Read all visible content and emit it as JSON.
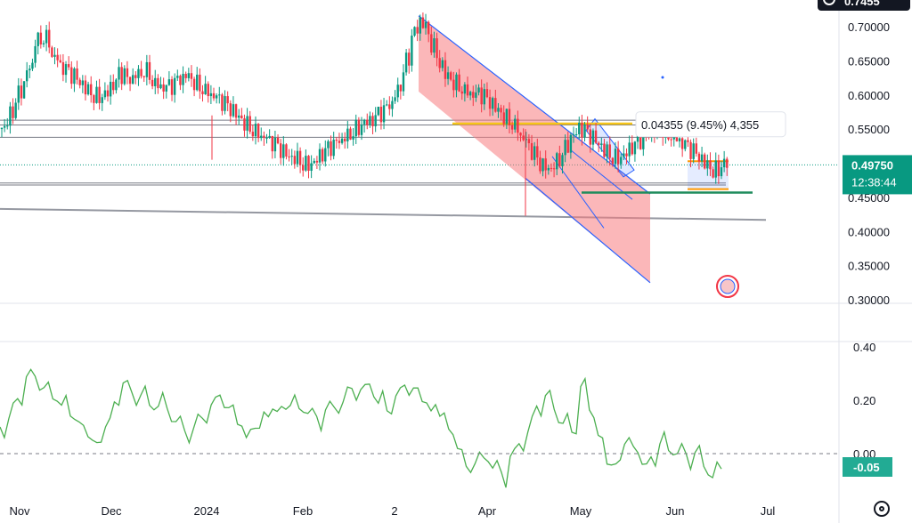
{
  "top_button": {
    "label": "0.7455"
  },
  "price_axis": {
    "ticks": [
      "0.70000",
      "0.65000",
      "0.60000",
      "0.55000",
      "0.50000",
      "0.45000",
      "0.40000",
      "0.35000",
      "0.30000"
    ]
  },
  "indicator_axis": {
    "ticks": [
      "0.40",
      "0.20",
      "0.00"
    ]
  },
  "time_axis": {
    "labels": [
      "Nov",
      "Dec",
      "2024",
      "Feb",
      "2",
      "Apr",
      "May",
      "Jun",
      "Jul"
    ]
  },
  "current_price": {
    "value": "0.49750",
    "countdown": "12:38:44",
    "color": "#089981"
  },
  "indicator_current": {
    "value": "-0.05",
    "color": "#22ab94"
  },
  "measure_label": "0.04355 (9.45%) 4,355",
  "colors": {
    "up": "#089981",
    "down": "#f23645",
    "indicator": "#4caf50",
    "channel": "#f77c80",
    "channel_line": "#2962ff",
    "support": "#1e8c5c",
    "resistance": "#f5c518",
    "orange_box": "#ff9800"
  },
  "chart_data": {
    "type": "candlestick",
    "x": [
      "Nov",
      "Dec",
      "2024",
      "Feb",
      "2",
      "Apr",
      "May",
      "Jun",
      "Jul"
    ],
    "ylim": [
      0.3,
      0.72
    ],
    "price_ticks": [
      0.7,
      0.65,
      0.6,
      0.55,
      0.5,
      0.45,
      0.4,
      0.35,
      0.3
    ],
    "close_path": [
      0.55,
      0.57,
      0.6,
      0.63,
      0.68,
      0.69,
      0.66,
      0.64,
      0.63,
      0.62,
      0.61,
      0.6,
      0.6,
      0.61,
      0.63,
      0.62,
      0.63,
      0.64,
      0.62,
      0.61,
      0.61,
      0.62,
      0.63,
      0.62,
      0.61,
      0.6,
      0.59,
      0.58,
      0.57,
      0.56,
      0.55,
      0.54,
      0.53,
      0.52,
      0.51,
      0.51,
      0.5,
      0.5,
      0.51,
      0.52,
      0.53,
      0.54,
      0.55,
      0.56,
      0.56,
      0.57,
      0.58,
      0.6,
      0.64,
      0.69,
      0.71,
      0.68,
      0.65,
      0.63,
      0.62,
      0.61,
      0.6,
      0.6,
      0.59,
      0.58,
      0.57,
      0.56,
      0.54,
      0.52,
      0.5,
      0.49,
      0.5,
      0.52,
      0.54,
      0.55,
      0.54,
      0.53,
      0.52,
      0.51,
      0.51,
      0.52,
      0.53,
      0.54,
      0.55,
      0.55,
      0.54,
      0.53,
      0.52,
      0.51,
      0.5,
      0.49,
      0.5
    ],
    "current": 0.4975,
    "indicator": {
      "ylim": [
        -0.15,
        0.45
      ],
      "ticks": [
        0.4,
        0.2,
        0.0
      ],
      "current": -0.05,
      "values": [
        0.1,
        0.15,
        0.22,
        0.28,
        0.27,
        0.24,
        0.22,
        0.2,
        0.14,
        0.1,
        0.05,
        0.05,
        0.12,
        0.2,
        0.25,
        0.21,
        0.22,
        0.2,
        0.19,
        0.16,
        0.1,
        0.08,
        0.11,
        0.15,
        0.18,
        0.2,
        0.16,
        0.12,
        0.08,
        0.1,
        0.14,
        0.15,
        0.18,
        0.2,
        0.18,
        0.14,
        0.12,
        0.16,
        0.19,
        0.21,
        0.24,
        0.22,
        0.25,
        0.2,
        0.18,
        0.22,
        0.24,
        0.23,
        0.2,
        0.18,
        0.15,
        0.08,
        0.0,
        -0.05,
        -0.02,
        0.0,
        -0.06,
        -0.09,
        -0.02,
        0.05,
        0.1,
        0.18,
        0.2,
        0.15,
        0.12,
        0.1,
        0.26,
        0.15,
        0.05,
        -0.04,
        -0.02,
        0.05,
        0.02,
        -0.06,
        -0.02,
        0.05,
        0.03,
        0.0,
        -0.02,
        -0.01,
        -0.04,
        -0.07,
        -0.05
      ]
    }
  }
}
